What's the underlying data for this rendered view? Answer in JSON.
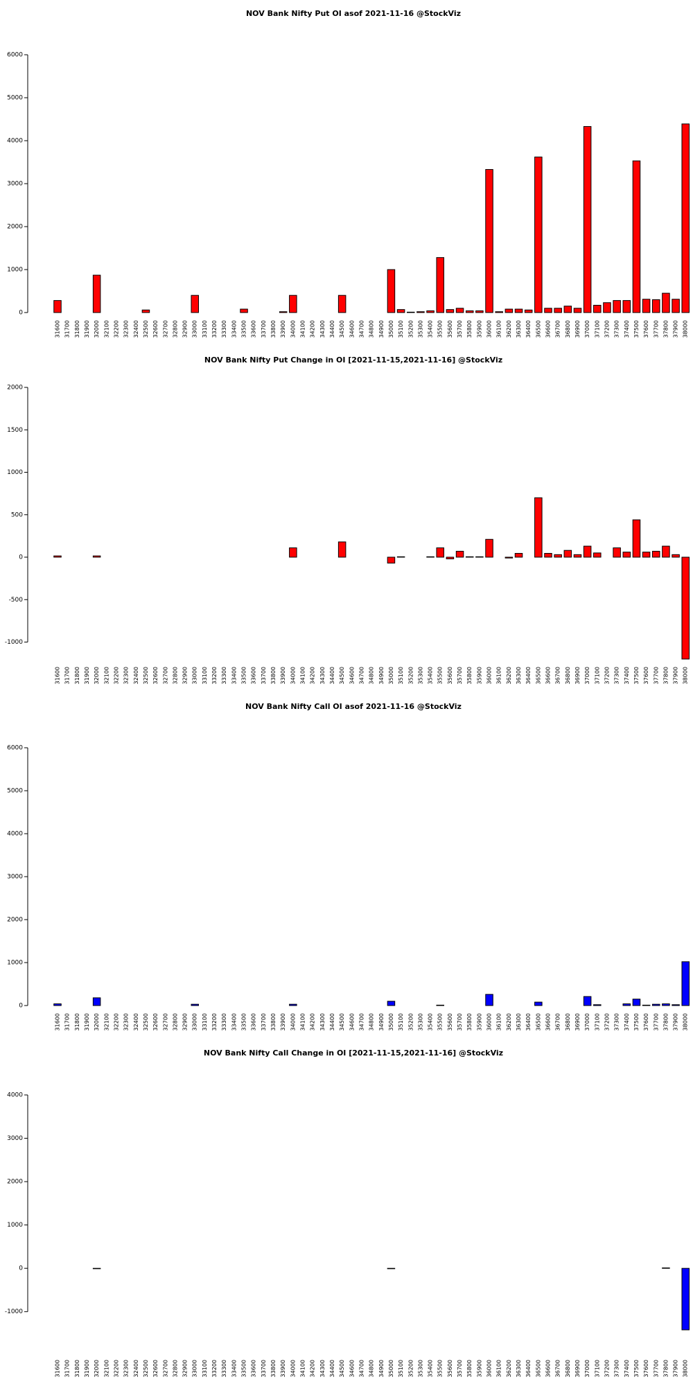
{
  "chart_data": [
    {
      "type": "bar",
      "title": "NOV Bank Nifty Put OI asof 2021-11-16 @StockViz",
      "color": "#ff0000",
      "categories": [
        "31600",
        "31700",
        "31800",
        "31900",
        "32000",
        "32100",
        "32200",
        "32300",
        "32400",
        "32500",
        "32600",
        "32700",
        "32800",
        "32900",
        "33000",
        "33100",
        "33200",
        "33300",
        "33400",
        "33500",
        "33600",
        "33700",
        "33800",
        "33900",
        "34000",
        "34100",
        "34200",
        "34300",
        "34400",
        "34500",
        "34600",
        "34700",
        "34800",
        "34900",
        "35000",
        "35100",
        "35200",
        "35300",
        "35400",
        "35500",
        "35600",
        "35700",
        "35800",
        "35900",
        "36000",
        "36100",
        "36200",
        "36300",
        "36400",
        "36500",
        "36600",
        "36700",
        "36800",
        "36900",
        "37000",
        "37100",
        "37200",
        "37300",
        "37400",
        "37500",
        "37600",
        "37700",
        "37800",
        "37900",
        "38000"
      ],
      "values": [
        280,
        0,
        0,
        0,
        870,
        0,
        0,
        0,
        0,
        60,
        0,
        0,
        0,
        0,
        400,
        0,
        0,
        0,
        0,
        80,
        0,
        0,
        0,
        20,
        400,
        0,
        0,
        0,
        0,
        400,
        0,
        0,
        0,
        0,
        1000,
        70,
        10,
        20,
        40,
        1280,
        70,
        100,
        40,
        40,
        3330,
        20,
        80,
        80,
        60,
        3620,
        100,
        100,
        150,
        100,
        4330,
        170,
        230,
        280,
        280,
        3530,
        310,
        300,
        450,
        310,
        4390
      ],
      "ylim": [
        0,
        6000
      ],
      "yticks": [
        0,
        1000,
        2000,
        3000,
        4000,
        5000,
        6000
      ]
    },
    {
      "type": "bar",
      "title": "NOV Bank Nifty Put Change in OI [2021-11-15,2021-11-16] @StockViz",
      "color": "#ff0000",
      "categories": [
        "31600",
        "31700",
        "31800",
        "31900",
        "32000",
        "32100",
        "32200",
        "32300",
        "32400",
        "32500",
        "32600",
        "32700",
        "32800",
        "32900",
        "33000",
        "33100",
        "33200",
        "33300",
        "33400",
        "33500",
        "33600",
        "33700",
        "33800",
        "33900",
        "34000",
        "34100",
        "34200",
        "34300",
        "34400",
        "34500",
        "34600",
        "34700",
        "34800",
        "34900",
        "35000",
        "35100",
        "35200",
        "35300",
        "35400",
        "35500",
        "35600",
        "35700",
        "35800",
        "35900",
        "36000",
        "36100",
        "36200",
        "36300",
        "36400",
        "36500",
        "36600",
        "36700",
        "36800",
        "36900",
        "37000",
        "37100",
        "37200",
        "37300",
        "37400",
        "37500",
        "37600",
        "37700",
        "37800",
        "37900",
        "38000"
      ],
      "values": [
        15,
        0,
        0,
        0,
        15,
        0,
        0,
        0,
        0,
        0,
        0,
        0,
        0,
        0,
        0,
        0,
        0,
        0,
        0,
        0,
        0,
        0,
        0,
        0,
        110,
        0,
        0,
        0,
        0,
        180,
        0,
        0,
        0,
        0,
        -70,
        5,
        0,
        0,
        5,
        110,
        -20,
        70,
        5,
        5,
        210,
        0,
        -10,
        45,
        0,
        700,
        45,
        30,
        80,
        30,
        130,
        50,
        0,
        110,
        60,
        440,
        60,
        70,
        130,
        30,
        -1200
      ],
      "ylim": [
        -1200,
        2000
      ],
      "yticks": [
        -1000,
        -500,
        0,
        500,
        1000,
        1500,
        2000
      ]
    },
    {
      "type": "bar",
      "title": "NOV Bank Nifty Call OI asof 2021-11-16 @StockViz",
      "color": "#0000ff",
      "categories": [
        "31600",
        "31700",
        "31800",
        "31900",
        "32000",
        "32100",
        "32200",
        "32300",
        "32400",
        "32500",
        "32600",
        "32700",
        "32800",
        "32900",
        "33000",
        "33100",
        "33200",
        "33300",
        "33400",
        "33500",
        "33600",
        "33700",
        "33800",
        "33900",
        "34000",
        "34100",
        "34200",
        "34300",
        "34400",
        "34500",
        "34600",
        "34700",
        "34800",
        "34900",
        "35000",
        "35100",
        "35200",
        "35300",
        "35400",
        "35500",
        "35600",
        "35700",
        "35800",
        "35900",
        "36000",
        "36100",
        "36200",
        "36300",
        "36400",
        "36500",
        "36600",
        "36700",
        "36800",
        "36900",
        "37000",
        "37100",
        "37200",
        "37300",
        "37400",
        "37500",
        "37600",
        "37700",
        "37800",
        "37900",
        "38000"
      ],
      "values": [
        40,
        0,
        0,
        0,
        180,
        0,
        0,
        0,
        0,
        0,
        0,
        0,
        0,
        0,
        30,
        0,
        0,
        0,
        0,
        0,
        0,
        0,
        0,
        0,
        30,
        0,
        0,
        0,
        0,
        0,
        0,
        0,
        0,
        0,
        100,
        0,
        0,
        0,
        0,
        10,
        0,
        0,
        0,
        0,
        260,
        0,
        0,
        0,
        0,
        80,
        0,
        0,
        0,
        0,
        210,
        20,
        0,
        0,
        40,
        150,
        10,
        30,
        40,
        20,
        1020
      ],
      "ylim": [
        0,
        6000
      ],
      "yticks": [
        0,
        1000,
        2000,
        3000,
        4000,
        5000,
        6000
      ]
    },
    {
      "type": "bar",
      "title": "NOV Bank Nifty Call Change in OI [2021-11-15,2021-11-16] @StockViz",
      "color": "#0000ff",
      "categories": [
        "31600",
        "31700",
        "31800",
        "31900",
        "32000",
        "32100",
        "32200",
        "32300",
        "32400",
        "32500",
        "32600",
        "32700",
        "32800",
        "32900",
        "33000",
        "33100",
        "33200",
        "33300",
        "33400",
        "33500",
        "33600",
        "33700",
        "33800",
        "33900",
        "34000",
        "34100",
        "34200",
        "34300",
        "34400",
        "34500",
        "34600",
        "34700",
        "34800",
        "34900",
        "35000",
        "35100",
        "35200",
        "35300",
        "35400",
        "35500",
        "35600",
        "35700",
        "35800",
        "35900",
        "36000",
        "36100",
        "36200",
        "36300",
        "36400",
        "36500",
        "36600",
        "36700",
        "36800",
        "36900",
        "37000",
        "37100",
        "37200",
        "37300",
        "37400",
        "37500",
        "37600",
        "37700",
        "37800",
        "37900",
        "38000"
      ],
      "values": [
        0,
        0,
        0,
        0,
        -10,
        0,
        0,
        0,
        0,
        0,
        0,
        0,
        0,
        0,
        0,
        0,
        0,
        0,
        0,
        0,
        0,
        0,
        0,
        0,
        0,
        0,
        0,
        0,
        0,
        0,
        0,
        0,
        0,
        0,
        -10,
        0,
        0,
        0,
        0,
        0,
        0,
        0,
        0,
        0,
        0,
        0,
        0,
        0,
        0,
        0,
        0,
        0,
        0,
        0,
        0,
        0,
        0,
        0,
        0,
        0,
        0,
        0,
        10,
        0,
        -1420
      ],
      "ylim": [
        -1420,
        4000
      ],
      "yticks": [
        -1000,
        0,
        1000,
        2000,
        3000,
        4000
      ]
    }
  ]
}
